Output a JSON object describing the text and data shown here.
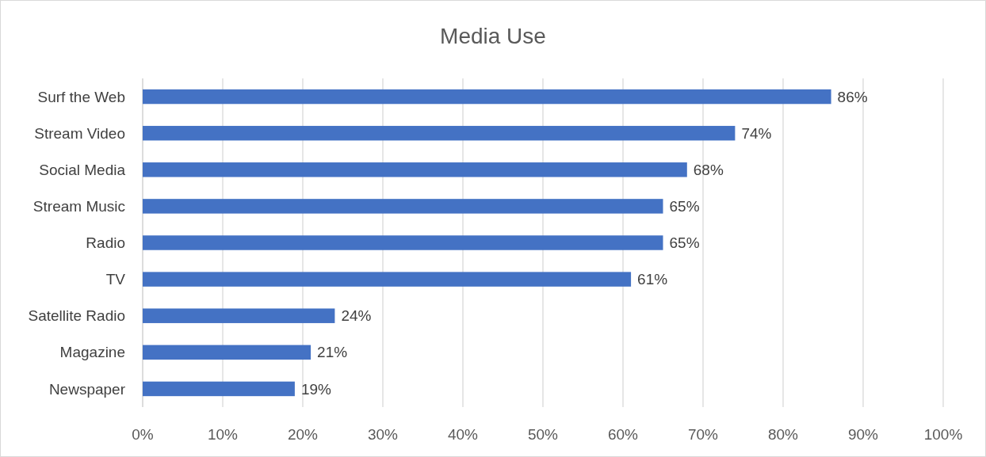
{
  "chart_data": {
    "type": "bar",
    "orientation": "horizontal",
    "title": "Media Use",
    "categories": [
      "Surf the Web",
      "Stream Video",
      "Social Media",
      "Stream Music",
      "Radio",
      "TV",
      "Satellite Radio",
      "Magazine",
      "Newspaper"
    ],
    "values": [
      86,
      74,
      68,
      65,
      65,
      61,
      24,
      21,
      19
    ],
    "value_labels": [
      "86%",
      "74%",
      "68%",
      "65%",
      "65%",
      "61%",
      "24%",
      "21%",
      "19%"
    ],
    "color": "#4472c4",
    "xlim": [
      0,
      100
    ],
    "xticks": [
      {
        "value": 0,
        "label": "0%"
      },
      {
        "value": 10,
        "label": "10%"
      },
      {
        "value": 20,
        "label": "20%"
      },
      {
        "value": 30,
        "label": "30%"
      },
      {
        "value": 40,
        "label": "40%"
      },
      {
        "value": 50,
        "label": "50%"
      },
      {
        "value": 60,
        "label": "60%"
      },
      {
        "value": 70,
        "label": "70%"
      },
      {
        "value": 80,
        "label": "80%"
      },
      {
        "value": 90,
        "label": "90%"
      },
      {
        "value": 100,
        "label": "100%"
      }
    ],
    "grid": "x"
  }
}
